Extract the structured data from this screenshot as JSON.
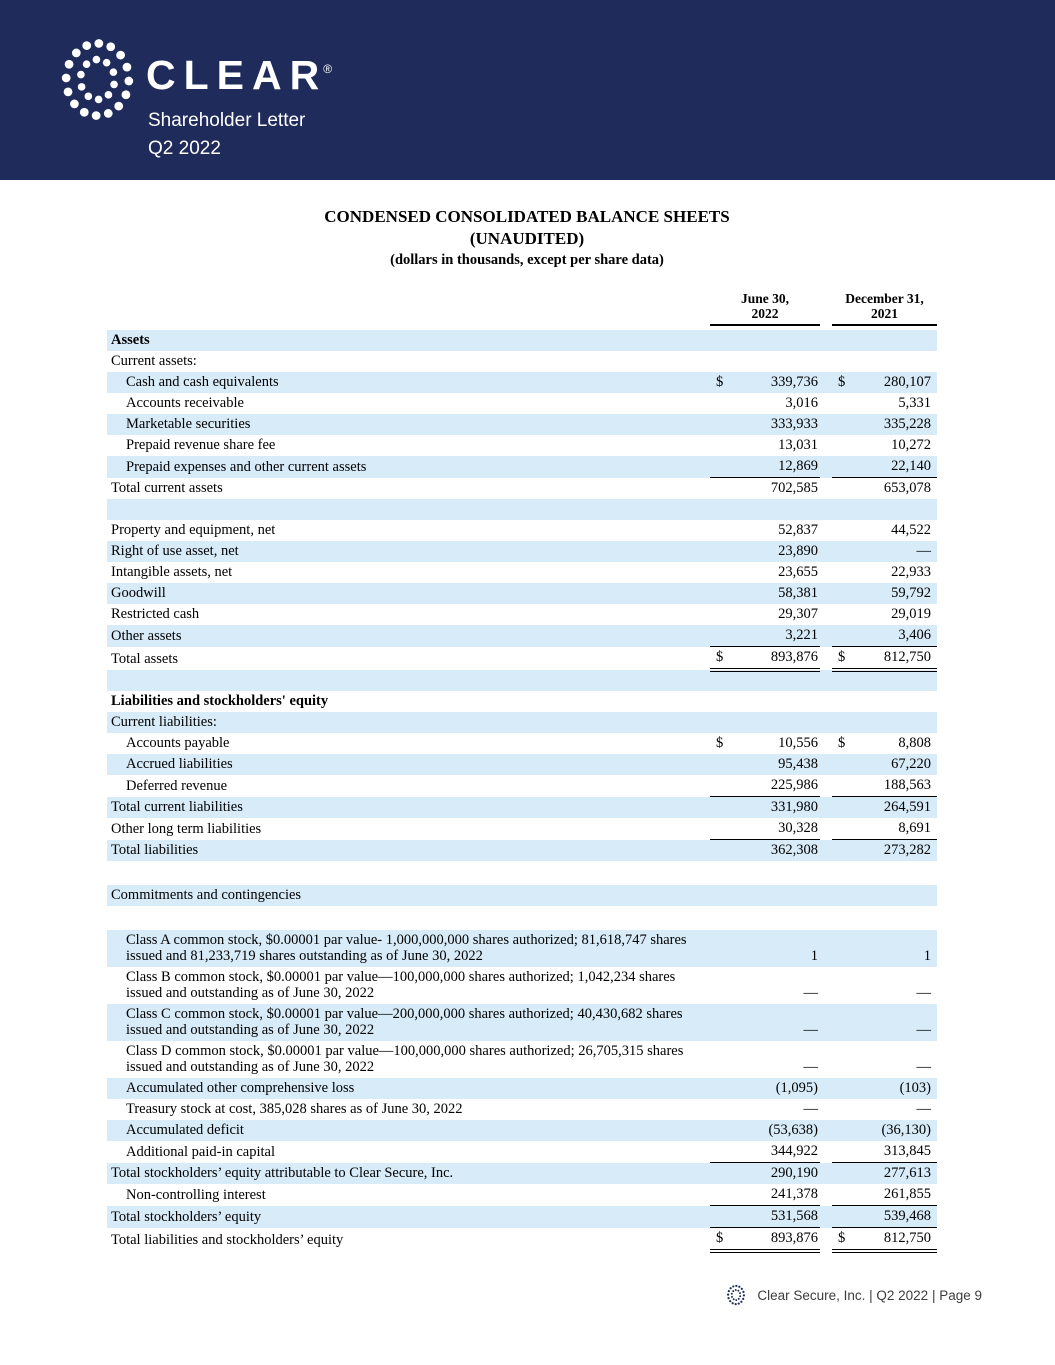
{
  "header": {
    "brand": "CLEAR",
    "registered": "®",
    "subtitle": "Shareholder Letter",
    "period": "Q2 2022"
  },
  "title": {
    "line1": "CONDENSED CONSOLIDATED BALANCE SHEETS",
    "line2": "(UNAUDITED)",
    "line3": "(dollars in thousands, except per share data)"
  },
  "table": {
    "columns": [
      {
        "line1": "June 30,",
        "line2": "2022"
      },
      {
        "line1": "December 31,",
        "line2": "2021"
      }
    ],
    "rows": [
      {
        "bg": "blue",
        "bold": true,
        "label": "Assets"
      },
      {
        "bg": "white",
        "label": "Current assets:"
      },
      {
        "bg": "blue",
        "indent": 1,
        "label": "Cash and cash equivalents",
        "d1": "$",
        "v1": "339,736",
        "d2": "$",
        "v2": "280,107"
      },
      {
        "bg": "white",
        "indent": 1,
        "label": "Accounts receivable",
        "v1": "3,016",
        "v2": "5,331"
      },
      {
        "bg": "blue",
        "indent": 1,
        "label": "Marketable securities",
        "v1": "333,933",
        "v2": "335,228"
      },
      {
        "bg": "white",
        "indent": 1,
        "label": "Prepaid revenue share fee",
        "v1": "13,031",
        "v2": "10,272"
      },
      {
        "bg": "blue",
        "indent": 1,
        "label": "Prepaid expenses and other current assets",
        "v1": "12,869",
        "v2": "22,140",
        "line": "single"
      },
      {
        "bg": "white",
        "label": "Total current assets",
        "v1": "702,585",
        "v2": "653,078"
      },
      {
        "bg": "blue",
        "blank": true
      },
      {
        "bg": "white",
        "label": "Property and equipment, net",
        "v1": "52,837",
        "v2": "44,522"
      },
      {
        "bg": "blue",
        "label": "Right of use asset, net",
        "v1": "23,890",
        "v2": "—"
      },
      {
        "bg": "white",
        "label": "Intangible assets, net",
        "v1": "23,655",
        "v2": "22,933"
      },
      {
        "bg": "blue",
        "label": "Goodwill",
        "v1": "58,381",
        "v2": "59,792"
      },
      {
        "bg": "white",
        "label": "Restricted cash",
        "v1": "29,307",
        "v2": "29,019"
      },
      {
        "bg": "blue",
        "label": "Other assets",
        "v1": "3,221",
        "v2": "3,406",
        "line": "single"
      },
      {
        "bg": "white",
        "label": "Total assets",
        "d1": "$",
        "v1": "893,876",
        "d2": "$",
        "v2": "812,750",
        "line": "double"
      },
      {
        "bg": "blue",
        "blank": true
      },
      {
        "bg": "white",
        "bold": true,
        "label": "Liabilities and stockholders' equity"
      },
      {
        "bg": "blue",
        "label": "Current liabilities:"
      },
      {
        "bg": "white",
        "indent": 1,
        "label": "Accounts payable",
        "d1": "$",
        "v1": "10,556",
        "d2": "$",
        "v2": "8,808"
      },
      {
        "bg": "blue",
        "indent": 1,
        "label": "Accrued liabilities",
        "v1": "95,438",
        "v2": "67,220"
      },
      {
        "bg": "white",
        "indent": 1,
        "label": "Deferred revenue",
        "v1": "225,986",
        "v2": "188,563",
        "line": "single"
      },
      {
        "bg": "blue",
        "label": "Total current liabilities",
        "v1": "331,980",
        "v2": "264,591"
      },
      {
        "bg": "white",
        "label": "Other long term liabilities",
        "v1": "30,328",
        "v2": "8,691",
        "line": "single"
      },
      {
        "bg": "blue",
        "label": "Total liabilities",
        "v1": "362,308",
        "v2": "273,282"
      },
      {
        "bg": "white",
        "blank": true,
        "tall": true
      },
      {
        "bg": "blue",
        "label": "Commitments and contingencies"
      },
      {
        "bg": "white",
        "blank": true,
        "tall": true
      },
      {
        "bg": "blue",
        "indent": 1,
        "label": "Class A common stock, $0.00001 par value- 1,000,000,000 shares authorized; 81,618,747 shares issued and 81,233,719 shares outstanding as of June 30, 2022",
        "v1": "1",
        "v2": "1"
      },
      {
        "bg": "white",
        "indent": 1,
        "label": "Class B common stock, $0.00001 par value—100,000,000 shares authorized; 1,042,234 shares issued and outstanding as of June 30, 2022",
        "v1": "—",
        "v2": "—"
      },
      {
        "bg": "blue",
        "indent": 1,
        "label": "Class C common stock, $0.00001 par value—200,000,000 shares authorized; 40,430,682 shares issued and outstanding as of June 30, 2022",
        "v1": "—",
        "v2": "—"
      },
      {
        "bg": "white",
        "indent": 1,
        "label": "Class D common stock, $0.00001 par value—100,000,000 shares authorized; 26,705,315 shares issued and outstanding as of June 30, 2022",
        "v1": "—",
        "v2": "—"
      },
      {
        "bg": "blue",
        "indent": 1,
        "label": "Accumulated other comprehensive loss",
        "v1": "(1,095)",
        "v2": "(103)"
      },
      {
        "bg": "white",
        "indent": 1,
        "label": "Treasury stock at cost, 385,028 shares as of June 30, 2022",
        "v1": "—",
        "v2": "—"
      },
      {
        "bg": "blue",
        "indent": 1,
        "label": "Accumulated deficit",
        "v1": "(53,638)",
        "v2": "(36,130)"
      },
      {
        "bg": "white",
        "indent": 1,
        "label": "Additional paid-in capital",
        "v1": "344,922",
        "v2": "313,845",
        "line": "single"
      },
      {
        "bg": "blue",
        "label": "Total stockholders’ equity attributable to Clear Secure, Inc.",
        "v1": "290,190",
        "v2": "277,613"
      },
      {
        "bg": "white",
        "indent": 1,
        "label": "Non-controlling interest",
        "v1": "241,378",
        "v2": "261,855",
        "line": "single"
      },
      {
        "bg": "blue",
        "label": "Total stockholders’ equity",
        "v1": "531,568",
        "v2": "539,468",
        "line": "single"
      },
      {
        "bg": "white",
        "label": "Total liabilities and stockholders’ equity",
        "d1": "$",
        "v1": "893,876",
        "d2": "$",
        "v2": "812,750",
        "line": "double"
      }
    ]
  },
  "footer": {
    "text": "Clear Secure, Inc. | Q2 2022 | Page 9"
  },
  "colors": {
    "banner_navy": "#1f2b5b",
    "row_blue": "#d7ebf8"
  }
}
